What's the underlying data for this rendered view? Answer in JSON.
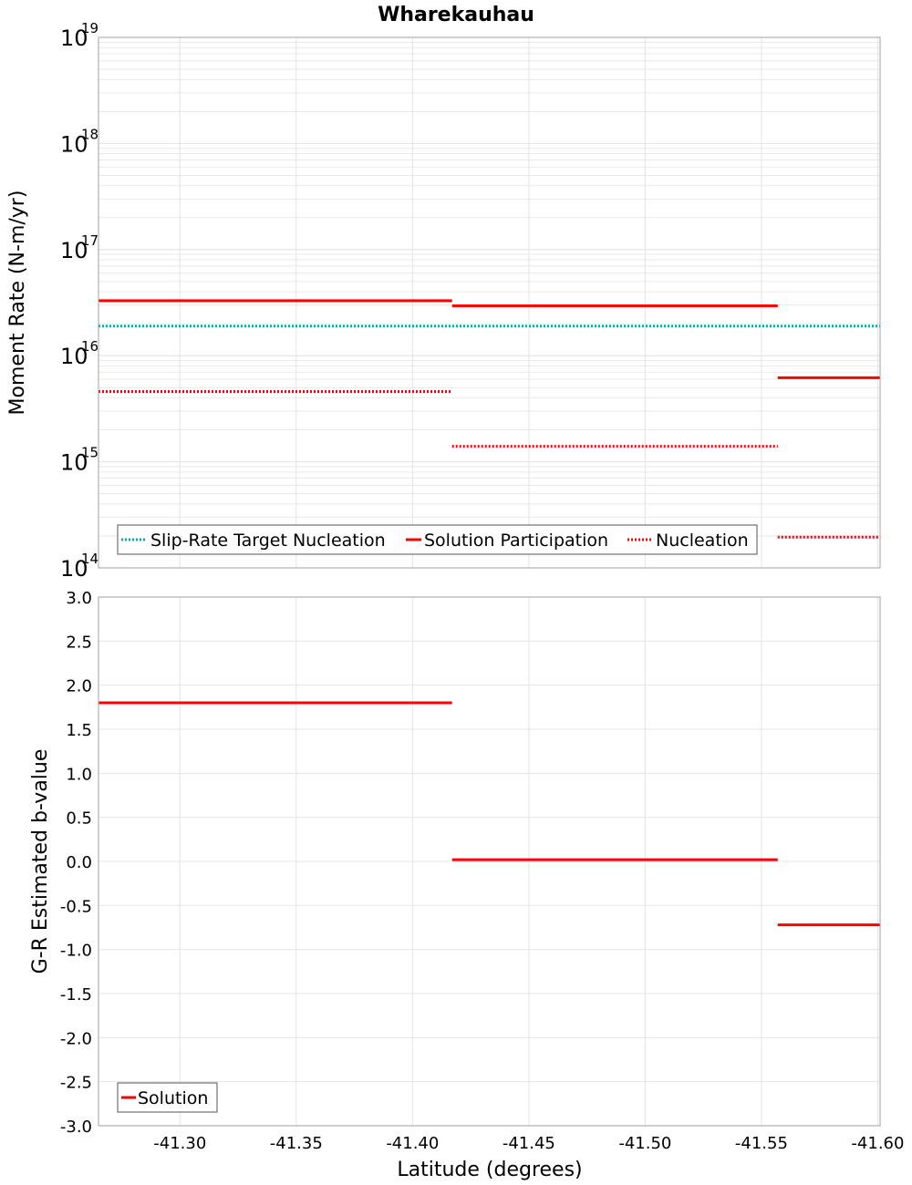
{
  "title": "Wharekauhau",
  "colors": {
    "solution": "#ff0000",
    "target": "#00b0b8",
    "grid": "#e4e4e4",
    "frame": "#a0a0a0"
  },
  "chart_data": [
    {
      "type": "line",
      "ylabel": "Moment Rate (N-m/yr)",
      "yscale": "log",
      "ylim": [
        100000000000000.0,
        1e+19
      ],
      "xlim": [
        -41.265,
        -41.601
      ],
      "ytick_labels": [
        {
          "base": "10",
          "exp": "14",
          "value": 100000000000000.0
        },
        {
          "base": "10",
          "exp": "15",
          "value": 1000000000000000.0
        },
        {
          "base": "10",
          "exp": "16",
          "value": 1e+16
        },
        {
          "base": "10",
          "exp": "17",
          "value": 1e+17
        },
        {
          "base": "10",
          "exp": "18",
          "value": 1e+18
        },
        {
          "base": "10",
          "exp": "19",
          "value": 1e+19
        }
      ],
      "legend": {
        "placement": "bottom-left",
        "entries": [
          "Slip-Rate Target Nucleation",
          "Solution Participation",
          "Nucleation"
        ]
      },
      "series": [
        {
          "name": "Slip-Rate Target Nucleation",
          "style": "dotted",
          "color": "#00b0b8",
          "segments": [
            {
              "x": [
                -41.265,
                -41.601
              ],
              "y": 1.9e+16
            }
          ]
        },
        {
          "name": "Solution Participation",
          "style": "solid",
          "color": "#ff0000",
          "segments": [
            {
              "x": [
                -41.265,
                -41.417
              ],
              "y": 3.3e+16
            },
            {
              "x": [
                -41.417,
                -41.557
              ],
              "y": 2.95e+16
            },
            {
              "x": [
                -41.557,
                -41.601
              ],
              "y": 6200000000000000.0
            }
          ]
        },
        {
          "name": "Nucleation",
          "style": "dotted",
          "color": "#ff0000",
          "segments": [
            {
              "x": [
                -41.265,
                -41.417
              ],
              "y": 4600000000000000.0
            },
            {
              "x": [
                -41.417,
                -41.557
              ],
              "y": 1400000000000000.0
            },
            {
              "x": [
                -41.557,
                -41.601
              ],
              "y": 195000000000000.0
            }
          ]
        }
      ]
    },
    {
      "type": "line",
      "xlabel": "Latitude (degrees)",
      "ylabel": "G-R Estimated b-value",
      "ylim": [
        -3.0,
        3.0
      ],
      "xlim": [
        -41.265,
        -41.601
      ],
      "ytick_labels": [
        "3.0",
        "2.5",
        "2.0",
        "1.5",
        "1.0",
        "0.5",
        "0.0",
        "-0.5",
        "-1.0",
        "-1.5",
        "-2.0",
        "-2.5",
        "-3.0"
      ],
      "xtick_labels": [
        "-41.30",
        "-41.35",
        "-41.40",
        "-41.45",
        "-41.50",
        "-41.55",
        "-41.60"
      ],
      "legend": {
        "placement": "bottom-left",
        "entries": [
          "Solution"
        ]
      },
      "series": [
        {
          "name": "Solution",
          "style": "solid",
          "color": "#ff0000",
          "segments": [
            {
              "x": [
                -41.265,
                -41.417
              ],
              "y": 1.8
            },
            {
              "x": [
                -41.417,
                -41.557
              ],
              "y": 0.02
            },
            {
              "x": [
                -41.557,
                -41.601
              ],
              "y": -0.72
            }
          ]
        }
      ]
    }
  ]
}
